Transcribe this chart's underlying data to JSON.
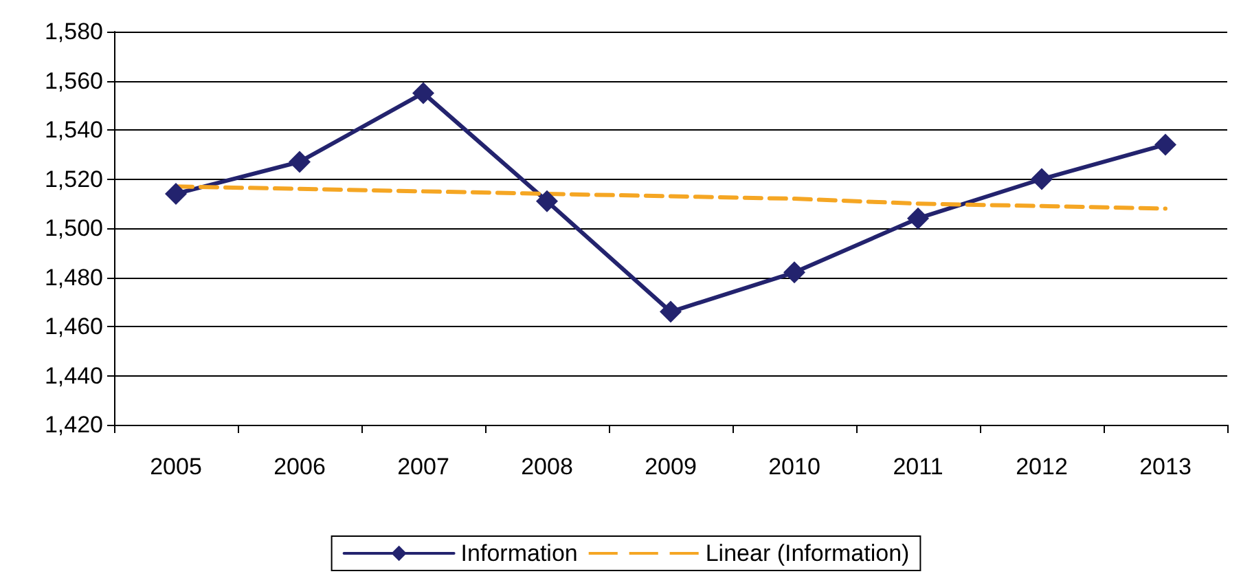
{
  "chart_data": {
    "type": "line",
    "categories": [
      "2005",
      "2006",
      "2007",
      "2008",
      "2009",
      "2010",
      "2011",
      "2012",
      "2013"
    ],
    "series": [
      {
        "name": "Information",
        "color": "#23236e",
        "values": [
          1514,
          1527,
          1555,
          1511,
          1466,
          1482,
          1504,
          1520,
          1534
        ],
        "marker": "diamond",
        "line_style": "solid"
      },
      {
        "name": "Linear (Information)",
        "color": "#f5a623",
        "type": "line",
        "values": [
          1517,
          1516,
          1515,
          1514,
          1513,
          1512,
          1510,
          1509,
          1508
        ],
        "marker": "none",
        "line_style": "dashed"
      }
    ],
    "ylim": [
      1420,
      1580
    ],
    "yticks": [
      {
        "value": 1420,
        "label": "1,420"
      },
      {
        "value": 1440,
        "label": "1,440"
      },
      {
        "value": 1460,
        "label": "1,460"
      },
      {
        "value": 1480,
        "label": "1,480"
      },
      {
        "value": 1500,
        "label": "1,500"
      },
      {
        "value": 1520,
        "label": "1,520"
      },
      {
        "value": 1540,
        "label": "1,540"
      },
      {
        "value": 1560,
        "label": "1,560"
      },
      {
        "value": 1580,
        "label": "1,580"
      }
    ],
    "grid": "y",
    "legend": "bottom"
  }
}
